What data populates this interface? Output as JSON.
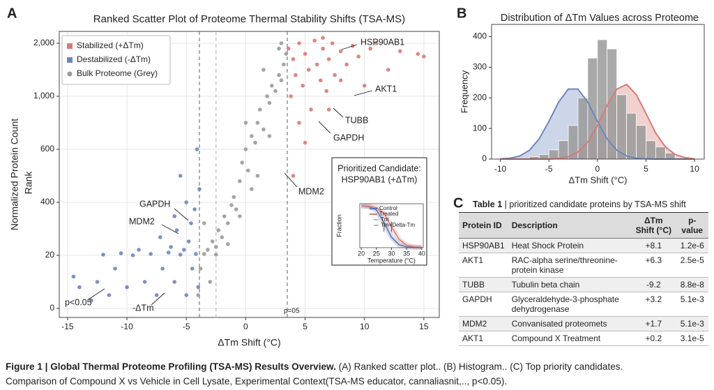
{
  "panel_labels": [
    "A",
    "B",
    "C"
  ],
  "chart_data": [
    {
      "type": "scatter",
      "title": "Ranked Scatter Plot of Proteome Thermal Stability Shifts (TSA-MS)",
      "xlabel": "ΔTm Shift (°C)",
      "ylabel": [
        "Normalized Protein Count",
        "Rank"
      ],
      "xlim": [
        -15.7,
        16.3
      ],
      "xticks": [
        -15,
        -10,
        -5,
        0,
        5,
        10,
        15
      ],
      "ylim": [
        -3,
        2220
      ],
      "yticks": [
        0,
        20,
        400,
        600,
        {
          "value": 1000,
          "label": "1,000"
        },
        {
          "value": 2000,
          "label": "2,000"
        }
      ],
      "grid": true,
      "legend": "upper left",
      "vlines": [
        -3.9,
        -2.5,
        3.5
      ],
      "series": [
        {
          "name": "Stabilized (+ΔTm)",
          "color": "#d77a78",
          "x": [
            3.6,
            4,
            4.2,
            4.5,
            4.8,
            5,
            5.3,
            5.5,
            5.8,
            6,
            6.3,
            6.5,
            6.8,
            7,
            7.3,
            7.5,
            8,
            8.5,
            9,
            9.5,
            10,
            10.5,
            11,
            12,
            13,
            14.5,
            15,
            4.5,
            5,
            3.8,
            6.5,
            8,
            4,
            7
          ],
          "values": [
            1900,
            1700,
            1400,
            2000,
            1200,
            1800,
            1500,
            900,
            2050,
            1600,
            1300,
            1900,
            1100,
            1700,
            2000,
            1400,
            1850,
            1600,
            1950,
            1750,
            1200,
            1900,
            2000,
            1500,
            1850,
            1800,
            1750,
            800,
            650,
            1000,
            2100,
            1300,
            500,
            900
          ]
        },
        {
          "name": "Destabilized (-ΔTm)",
          "color": "#6f86bd",
          "x": [
            -4,
            -4.2,
            -4.5,
            -4.8,
            -5,
            -5.2,
            -5.5,
            -5.8,
            -6,
            -6.3,
            -6.5,
            -7,
            -7.2,
            -7.5,
            -8,
            -8.5,
            -9,
            -9.5,
            -10,
            -10.5,
            -11,
            -11.5,
            -12,
            -12.5,
            -13,
            -14,
            -14.5,
            -4.3,
            -5,
            -6,
            -4.6,
            -3.9,
            -5.5,
            -4.1
          ],
          "values": [
            8,
            30,
            15,
            120,
            5,
            60,
            25,
            200,
            10,
            80,
            40,
            15,
            150,
            5,
            30,
            10,
            60,
            20,
            8,
            35,
            15,
            5,
            25,
            10,
            3,
            8,
            12,
            350,
            400,
            300,
            250,
            450,
            500,
            600
          ]
        },
        {
          "name": "Bulk Proteome (Grey)",
          "color": "#9a9a9a",
          "x": [
            -4,
            -3.8,
            -3.5,
            -3.2,
            -3,
            -2.8,
            -2.5,
            -2.3,
            -2,
            -1.8,
            -1.5,
            -1.2,
            -1,
            -0.8,
            -0.5,
            -0.3,
            0,
            0.2,
            0.5,
            0.8,
            1,
            1.2,
            1.5,
            1.8,
            2,
            2.2,
            2.5,
            2.8,
            3,
            3.2,
            3.4,
            0.5,
            -1.5,
            1.5,
            -2.5,
            2.8,
            -0.5,
            1,
            2,
            3,
            -3.5,
            0
          ],
          "values": [
            5,
            15,
            30,
            60,
            10,
            120,
            80,
            200,
            150,
            300,
            250,
            380,
            420,
            350,
            480,
            550,
            600,
            520,
            700,
            650,
            800,
            900,
            750,
            1000,
            950,
            1200,
            1100,
            1400,
            1300,
            1600,
            1800,
            450,
            100,
            1500,
            25,
            1900,
            300,
            500,
            700,
            2000,
            250,
            800
          ]
        }
      ],
      "annotations": [
        "HSP90AB1",
        "AKT1",
        "TUBB",
        "GAPDH",
        "MDM2",
        "GAPDH",
        "MDM2",
        "p<0.05",
        "-ΔTm",
        "p=05"
      ]
    },
    {
      "type": "histogram",
      "title": "Distribution of ΔTm Values across Proteome",
      "xlabel": "ΔTm Shift (°C)",
      "ylabel": "Frequency",
      "xlim": [
        -10.9,
        11
      ],
      "xticks": [
        -10,
        -5,
        0,
        5,
        10
      ],
      "ylim": [
        0,
        440
      ],
      "yticks": [
        0,
        100,
        200,
        300,
        400
      ],
      "grid": false,
      "color": "#9a9a9a",
      "bins": [
        -7,
        -6,
        -5,
        -4,
        -3,
        -2,
        -1,
        0,
        1,
        2,
        3,
        4,
        5,
        6,
        7,
        8
      ],
      "values": [
        8,
        15,
        30,
        60,
        110,
        200,
        330,
        390,
        360,
        210,
        150,
        110,
        60,
        40,
        20
      ],
      "series": [
        {
          "color": "#6f86bd",
          "x": [
            -10,
            -9,
            -8,
            -7,
            -6,
            -5,
            -4,
            -3,
            -2,
            -1,
            0,
            1,
            2,
            3,
            4,
            5,
            6,
            7,
            8,
            9,
            10
          ],
          "values": [
            1,
            3,
            10,
            29,
            66,
            123,
            186,
            229,
            229,
            186,
            123,
            66,
            29,
            10,
            3,
            1,
            0,
            0,
            0,
            0,
            0
          ]
        },
        {
          "color": "#d77a78",
          "x": [
            -10,
            -9,
            -8,
            -7,
            -6,
            -5,
            -4,
            -3,
            -2,
            -1,
            0,
            1,
            2,
            3,
            4,
            5,
            6,
            7,
            8,
            9,
            10
          ],
          "values": [
            0,
            0,
            0,
            0,
            0,
            0,
            2,
            8,
            23,
            55,
            109,
            175,
            229,
            244,
            211,
            149,
            85,
            40,
            15,
            5,
            1
          ]
        }
      ]
    },
    {
      "type": "line",
      "title": "Prioritized Candidate:",
      "subtitle": "HSP90AB1 (+ΔTm)",
      "xlabel": "Temperature (°C)",
      "ylabel": "Fraction",
      "xlim": [
        19.5,
        40.5
      ],
      "xticks": [
        20,
        25,
        30,
        35,
        40
      ],
      "ylim": [
        0,
        1.05
      ],
      "x": [
        20,
        22.5,
        25,
        27.5,
        30,
        32.5,
        35,
        37.5,
        40
      ],
      "series": [
        {
          "name": "Control",
          "color": "#5b74b5",
          "values": [
            1,
            0.98,
            0.9,
            0.6,
            0.25,
            0.07,
            0.02,
            0.01,
            0
          ]
        },
        {
          "name": "Treated",
          "color": "#d77a78",
          "values": [
            1,
            0.99,
            0.96,
            0.82,
            0.5,
            0.2,
            0.06,
            0.02,
            0.01
          ]
        }
      ],
      "markers": [
        {
          "name": "Tm",
          "x": 27.5
        },
        {
          "name": "Tm+Delta-Tm",
          "x": 30
        }
      ]
    }
  ],
  "table": {
    "label": "Table 1",
    "title": "| prioritized candidate proteins by TSA-MS shift",
    "columns": [
      "Protein ID",
      "Description",
      "ΔTm Shift (°C)",
      "p-value"
    ],
    "rows": [
      [
        "HSP90AB1",
        "Heat Shock Protein",
        "+8.1",
        "1.2e-6"
      ],
      [
        "AKT1",
        "RAC-alpha serine/threonine-protein kinase",
        "+6.3",
        "2.5e-5"
      ],
      [
        "TUBB",
        "Tubulin beta chain",
        "-9.2",
        "8.8e-8"
      ],
      [
        "GAPDH",
        "Glyceraldehyde-3-phosphate dehydrogenase",
        "+3.2",
        "5.1e-3"
      ],
      [
        "MDM2",
        "Convanisated proteomets",
        "+1.7",
        "5.1e-3"
      ],
      [
        "AKT1",
        "Compound X Treatment",
        "+0.2",
        "3.1e-5"
      ]
    ]
  },
  "caption": {
    "label": "Figure 1 | Global Thermal Proteome Profiling (TSA-MS) Results Overview.",
    "text": "(A) Ranked scatter plot.. (B) Histogram.. (C) Top priority candidates.",
    "context": "Comparison of Compound X vs Vehicle in Cell Lysate, Experimental Context(TSA-MS educator, cannaliasnit,.., p<0.05)."
  }
}
